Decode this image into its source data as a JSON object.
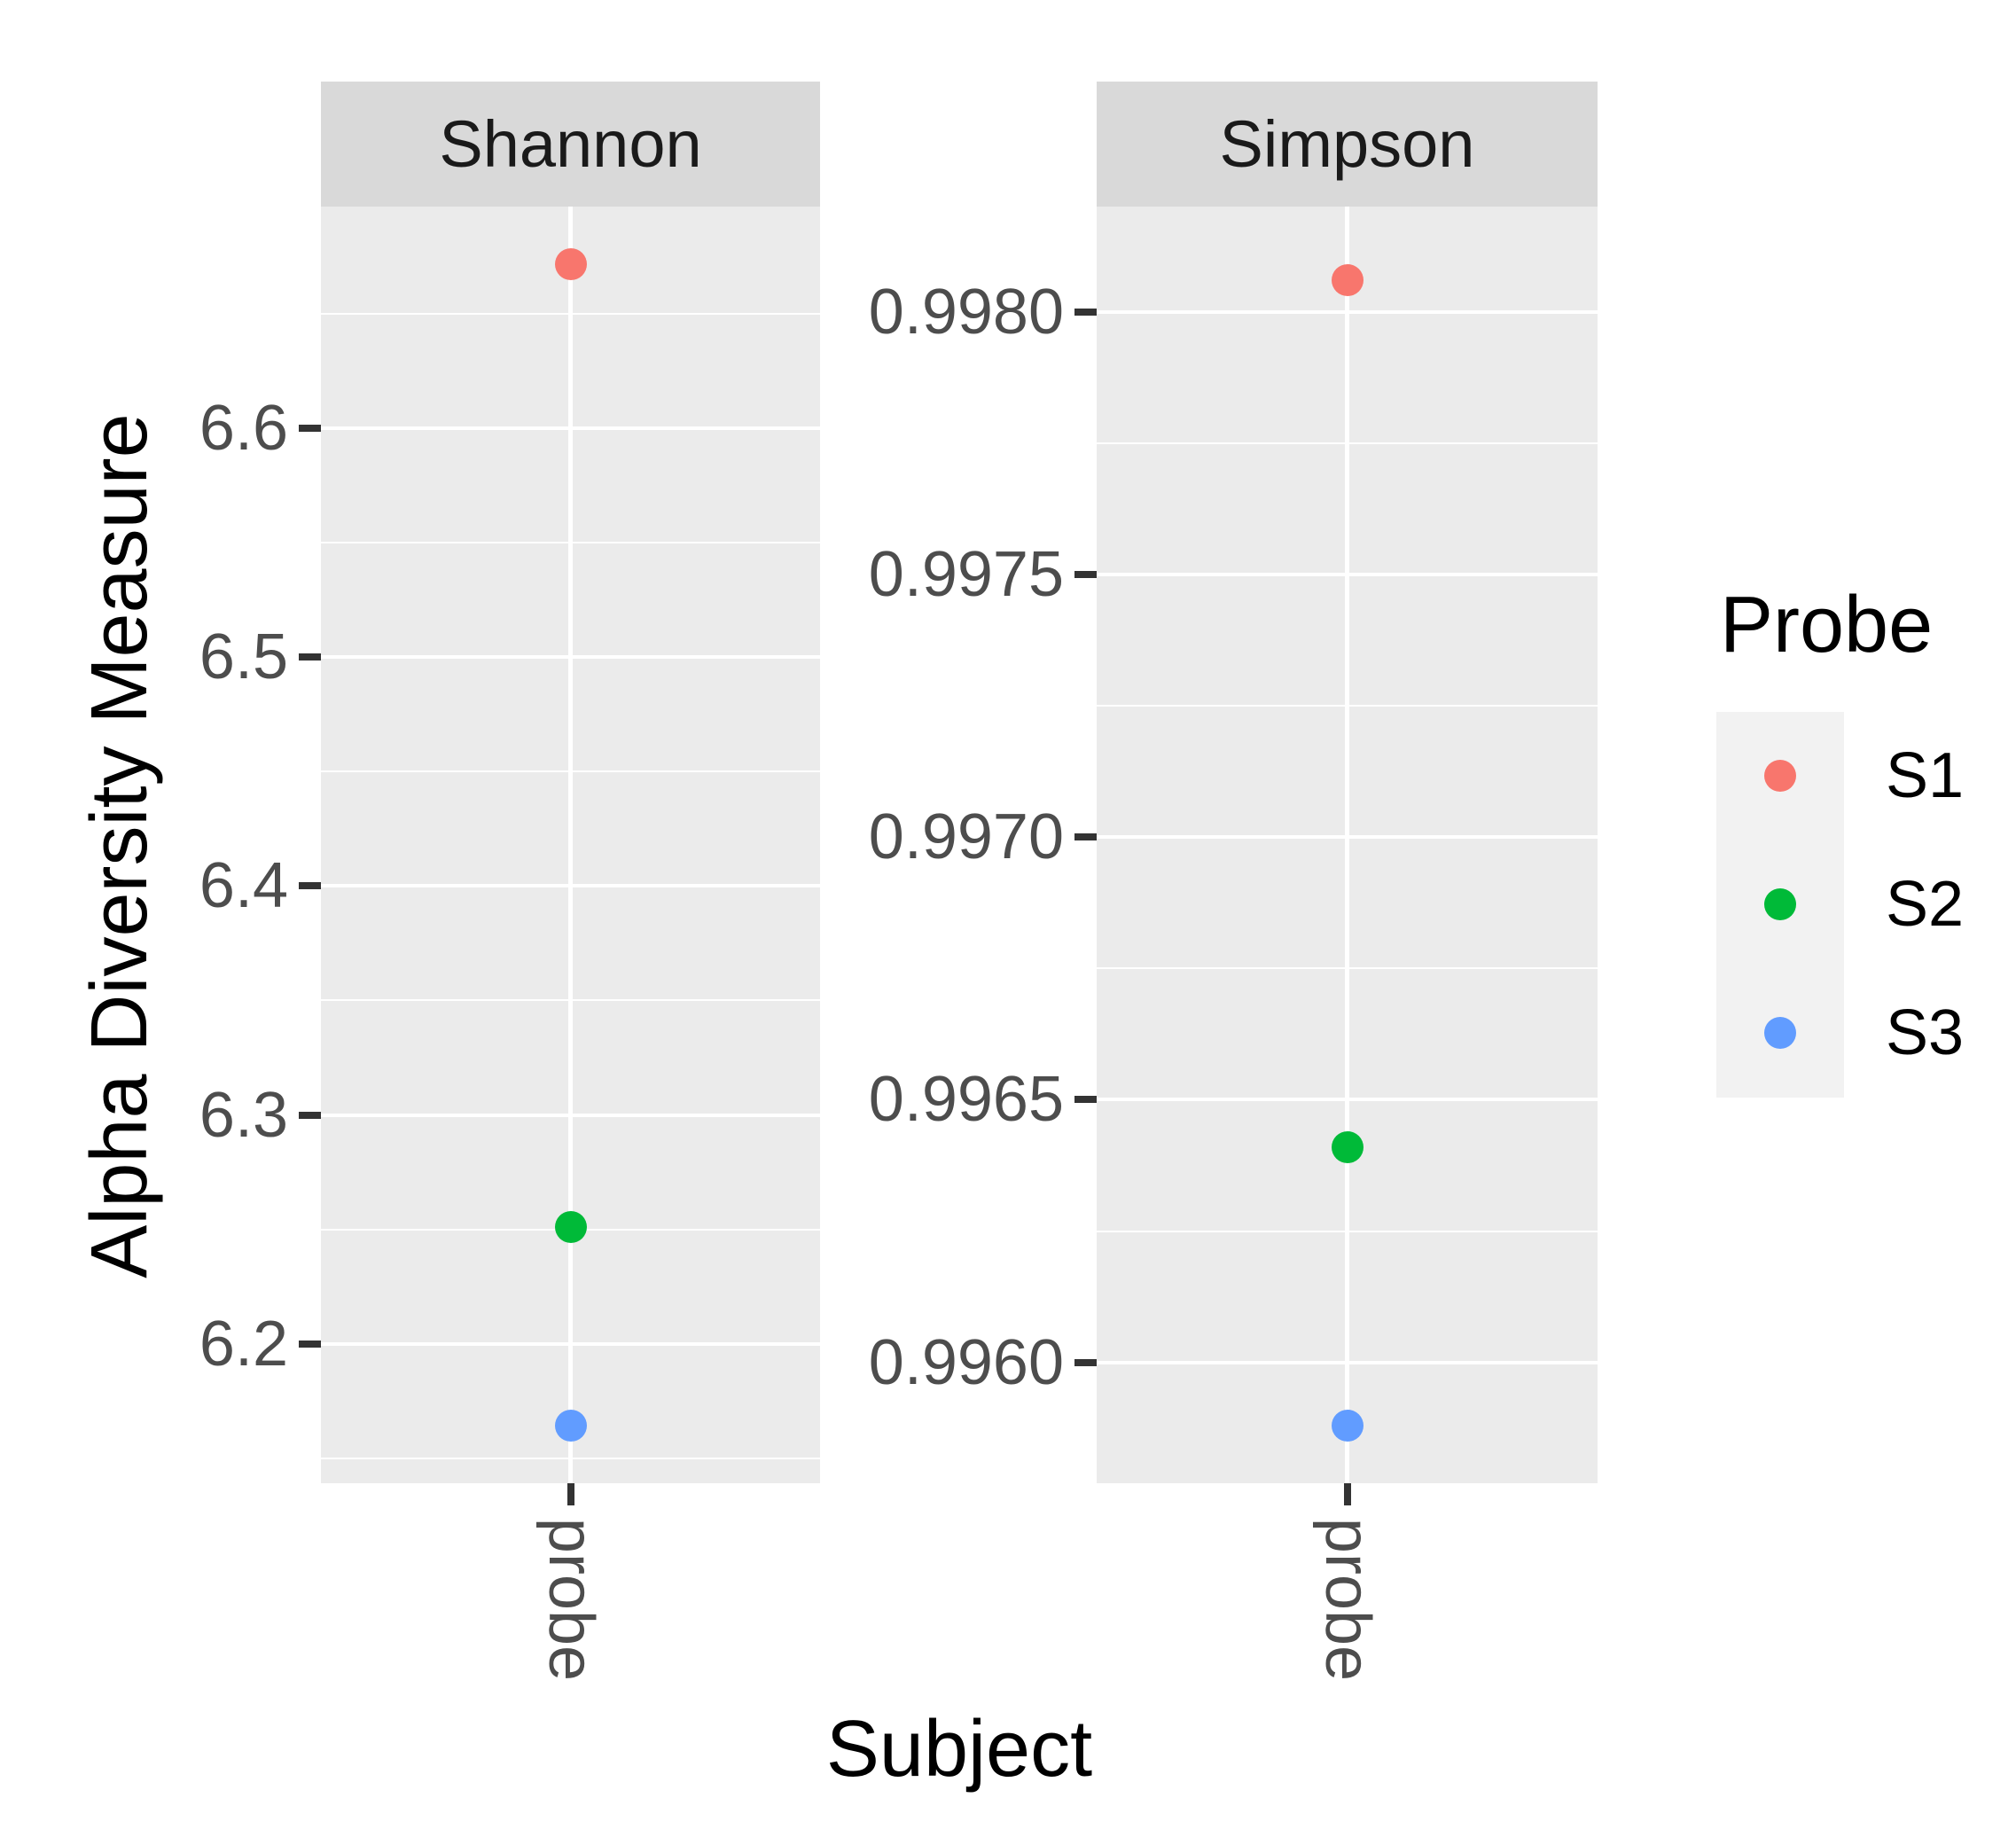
{
  "chart_data": {
    "type": "scatter",
    "description": "Faceted dot plot of alpha diversity (Shannon and Simpson indices) for subject 'probe', colored by Probe (S1, S2, S3); free y scales per facet; grey panels with white major/minor gridlines (ggplot2 style).",
    "xlabel": "Subject",
    "ylabel": "Alpha Diversity Measure",
    "grid": "white major and minor gridlines on grey panel background",
    "legend_position": "right",
    "facets": [
      {
        "label": "Shannon",
        "x_tick_label": "probe",
        "ylim": [
          6.139,
          6.697
        ],
        "y_ticks": [
          {
            "v": 6.2,
            "label": "6.2"
          },
          {
            "v": 6.3,
            "label": "6.3"
          },
          {
            "v": 6.4,
            "label": "6.4"
          },
          {
            "v": 6.5,
            "label": "6.5"
          },
          {
            "v": 6.6,
            "label": "6.6"
          }
        ],
        "series": [
          {
            "name": "S1",
            "value": 6.672
          },
          {
            "name": "S2",
            "value": 6.251
          },
          {
            "name": "S3",
            "value": 6.164
          }
        ]
      },
      {
        "label": "Simpson",
        "x_tick_label": "probe",
        "ylim": [
          0.99577,
          0.9982
        ],
        "y_ticks": [
          {
            "v": 0.996,
            "label": "0.9960"
          },
          {
            "v": 0.9965,
            "label": "0.9965"
          },
          {
            "v": 0.997,
            "label": "0.9970"
          },
          {
            "v": 0.9975,
            "label": "0.9975"
          },
          {
            "v": 0.998,
            "label": "0.9980"
          }
        ],
        "series": [
          {
            "name": "S1",
            "value": 0.99806
          },
          {
            "name": "S2",
            "value": 0.99641
          },
          {
            "name": "S3",
            "value": 0.99588
          }
        ]
      }
    ],
    "legend": {
      "title": "Probe",
      "entries": [
        {
          "label": "S1",
          "color": "#F8766D"
        },
        {
          "label": "S2",
          "color": "#00BA38"
        },
        {
          "label": "S3",
          "color": "#619CFF"
        }
      ]
    },
    "colors": {
      "panel_bg": "#EBEBEB",
      "strip_bg": "#D9D9D9",
      "gridline": "#FFFFFF",
      "tick_mark": "#333333",
      "axis_text": "#4D4D4D",
      "title_text": "#000000",
      "legend_key_bg": "#F2F2F2"
    }
  }
}
